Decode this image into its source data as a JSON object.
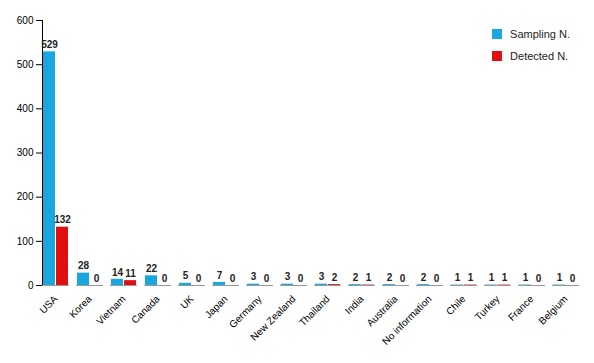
{
  "chart_data": {
    "type": "bar",
    "categories": [
      "USA",
      "Korea",
      "Vietnam",
      "Canada",
      "UK",
      "Japan",
      "Germany",
      "New Zealand",
      "Thailand",
      "India",
      "Australia",
      "No information",
      "Chile",
      "Turkey",
      "France",
      "Belgium"
    ],
    "series": [
      {
        "name": "Sampling N.",
        "color": "#1aa7e0",
        "values": [
          529,
          28,
          14,
          22,
          5,
          7,
          3,
          3,
          3,
          2,
          2,
          2,
          1,
          1,
          1,
          1
        ]
      },
      {
        "name": "Detected N.",
        "color": "#e01010",
        "values": [
          132,
          0,
          11,
          0,
          0,
          0,
          0,
          0,
          2,
          1,
          0,
          0,
          1,
          1,
          0,
          0
        ]
      }
    ],
    "ylim": [
      0,
      600
    ],
    "yticks": [
      0,
      100,
      200,
      300,
      400,
      500,
      600
    ],
    "grid": false,
    "legend": "top-right",
    "data_labels": true
  }
}
